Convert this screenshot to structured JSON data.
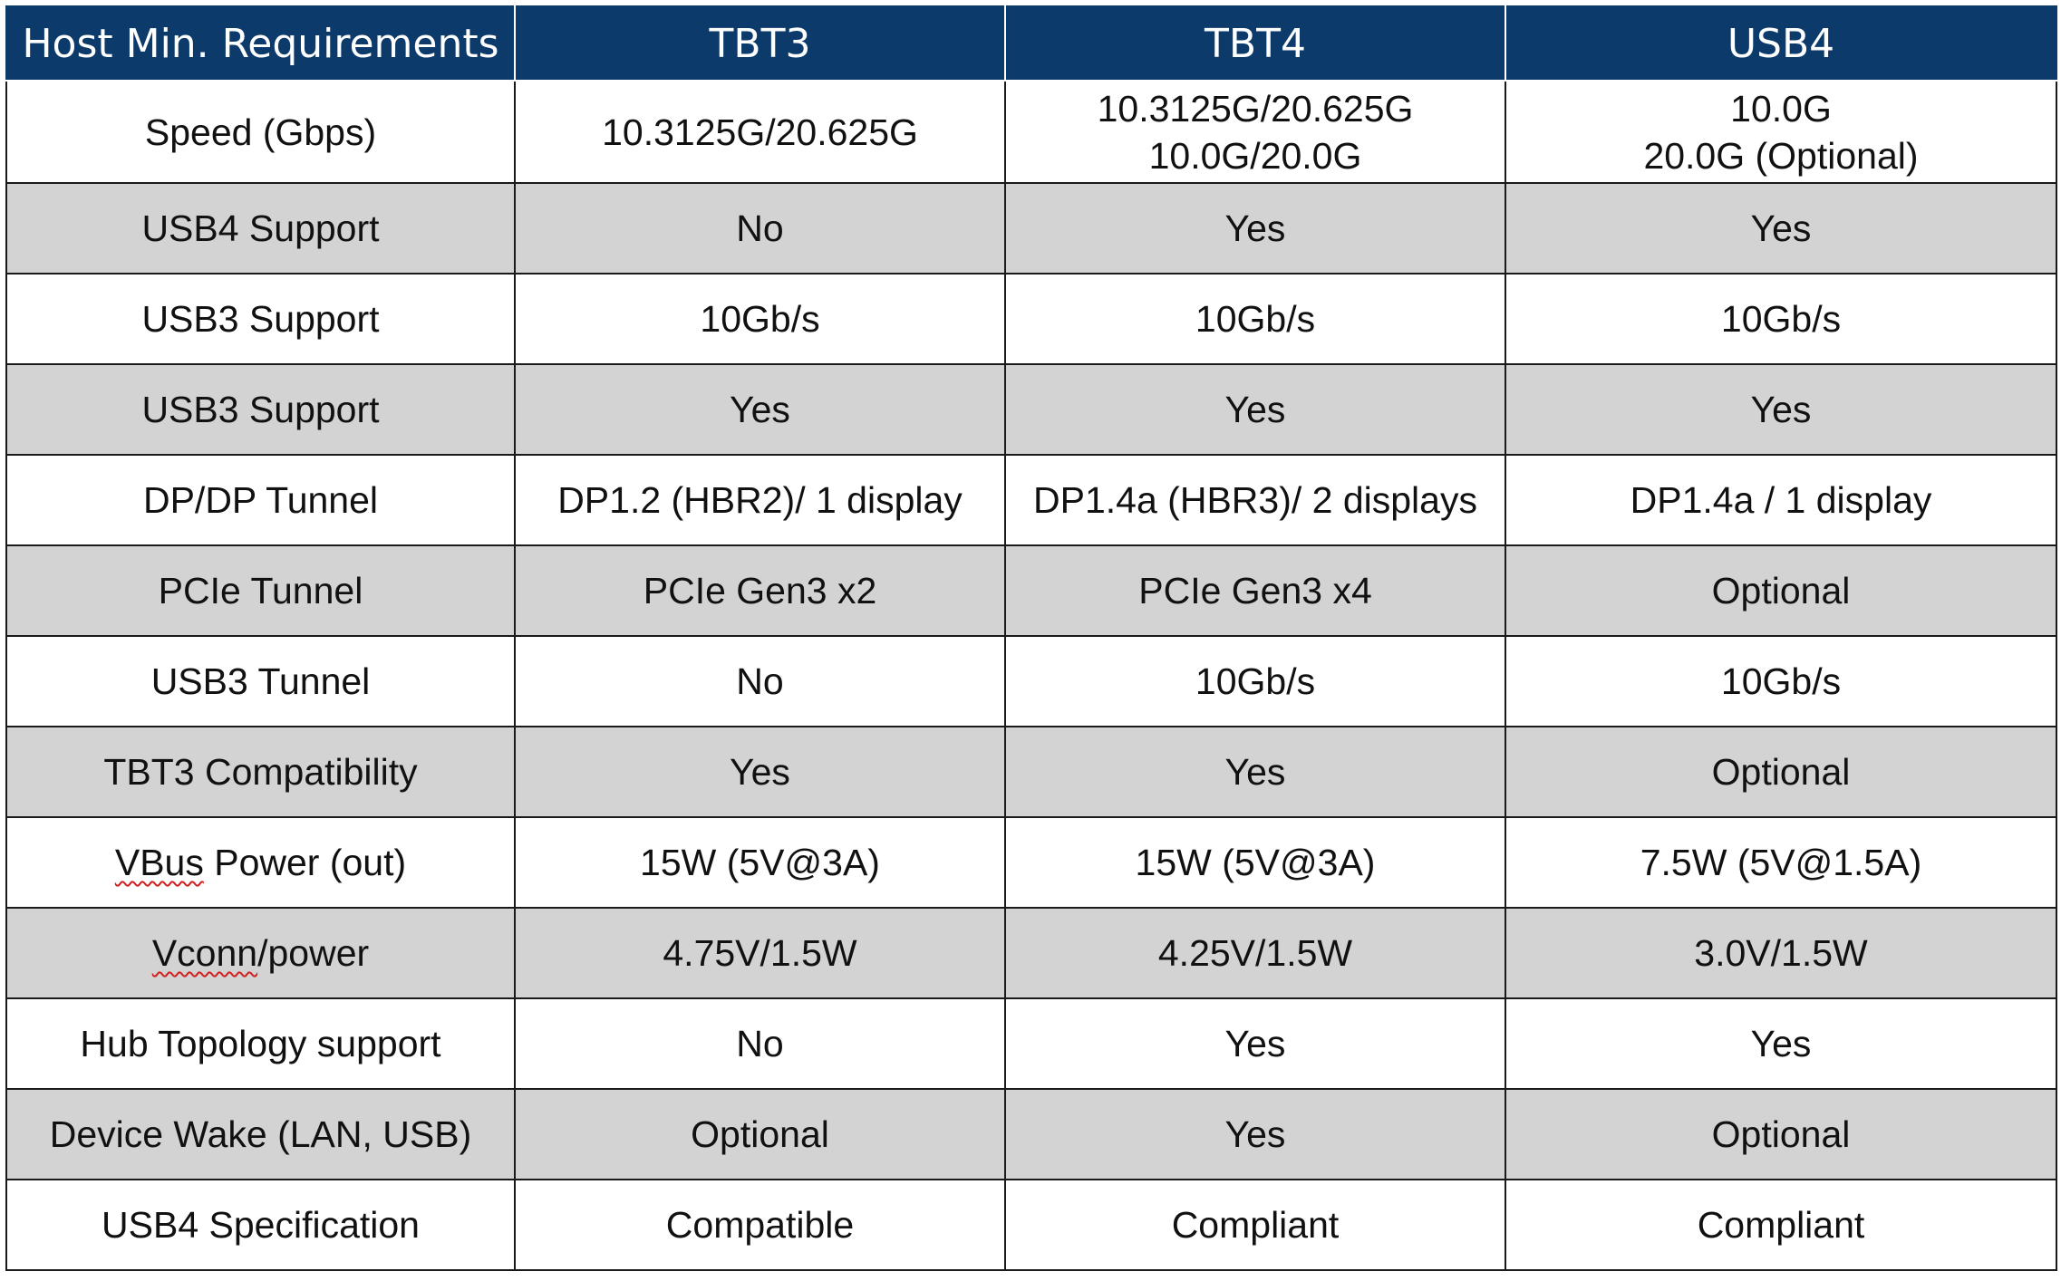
{
  "table": {
    "headers": [
      "Host Min. Requirements",
      "TBT3",
      "TBT4",
      "USB4"
    ],
    "rows": [
      {
        "label": "Speed (Gbps)",
        "tbt3": "10.3125G/20.625G",
        "tbt4_line1": "10.3125G/20.625G",
        "tbt4_line2": "10.0G/20.0G",
        "usb4_line1": "10.0G",
        "usb4_line2": "20.0G (Optional)"
      },
      {
        "label": "USB4 Support",
        "tbt3": "No",
        "tbt4": "Yes",
        "usb4": "Yes"
      },
      {
        "label": "USB3 Support",
        "tbt3": "10Gb/s",
        "tbt4": "10Gb/s",
        "usb4": "10Gb/s"
      },
      {
        "label": "USB3 Support",
        "tbt3": "Yes",
        "tbt4": "Yes",
        "usb4": "Yes"
      },
      {
        "label": "DP/DP Tunnel",
        "tbt3": "DP1.2 (HBR2)/ 1 display",
        "tbt4": "DP1.4a (HBR3)/ 2 displays",
        "usb4": "DP1.4a / 1 display"
      },
      {
        "label": "PCIe Tunnel",
        "tbt3": "PCIe Gen3 x2",
        "tbt4": "PCIe Gen3 x4",
        "usb4": "Optional"
      },
      {
        "label": "USB3 Tunnel",
        "tbt3": "No",
        "tbt4": "10Gb/s",
        "usb4": "10Gb/s"
      },
      {
        "label": "TBT3 Compatibility",
        "tbt3": "Yes",
        "tbt4": "Yes",
        "usb4": "Optional"
      },
      {
        "label_part1": "VBus",
        "label_part2": " Power (out)",
        "tbt3": "15W (5V@3A)",
        "tbt4": "15W (5V@3A)",
        "usb4": "7.5W (5V@1.5A)"
      },
      {
        "label_part1": "Vconn",
        "label_part2": "/power",
        "tbt3": "4.75V/1.5W",
        "tbt4": "4.25V/1.5W",
        "usb4": "3.0V/1.5W"
      },
      {
        "label": "Hub Topology support",
        "tbt3": "No",
        "tbt4": "Yes",
        "usb4": "Yes"
      },
      {
        "label": "Device Wake (LAN, USB)",
        "tbt3": "Optional",
        "tbt4": "Yes",
        "usb4": "Optional"
      },
      {
        "label": "USB4 Specification",
        "tbt3": "Compatible",
        "tbt4": "Compliant",
        "usb4": "Compliant"
      }
    ]
  },
  "colors": {
    "header_bg": "#0b3a6b",
    "header_text": "#ffffff",
    "shaded_row": "#d3d3d3",
    "plain_row": "#ffffff",
    "border": "#1a1a1a",
    "spellcheck_underline": "#d02020"
  }
}
